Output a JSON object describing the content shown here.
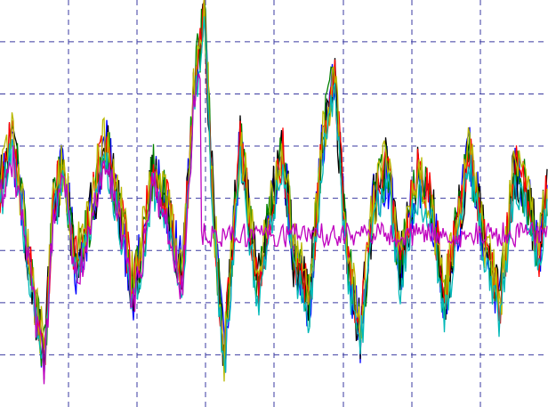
{
  "chart_data": {
    "type": "line",
    "title": "",
    "xlabel": "",
    "ylabel": "",
    "grid": true,
    "legend": "none",
    "xlim": [
      0,
      616
    ],
    "ylim": [
      -1.6,
      2.3
    ],
    "x_gridlines": [
      77,
      154,
      231,
      308,
      386,
      463,
      540
    ],
    "y_gridlines": [
      1.9,
      1.4,
      0.9,
      0.4,
      -0.1,
      -0.6,
      -1.1
    ],
    "envelope": {
      "x": [
        0,
        12,
        25,
        38,
        50,
        60,
        72,
        85,
        100,
        118,
        135,
        150,
        160,
        172,
        190,
        205,
        218,
        230,
        240,
        252,
        270,
        290,
        305,
        318,
        330,
        348,
        362,
        376,
        390,
        405,
        420,
        435,
        450,
        468,
        485,
        500,
        512,
        528,
        545,
        562,
        578,
        592,
        606,
        616
      ],
      "y": [
        0.4,
        0.95,
        0.3,
        -0.6,
        -1.2,
        0.3,
        0.65,
        -0.3,
        0.1,
        0.9,
        0.2,
        -0.55,
        -0.1,
        0.6,
        0.2,
        -0.4,
        1.4,
        2.1,
        0.2,
        -1.2,
        0.9,
        -0.55,
        0.3,
        0.8,
        -0.2,
        -0.65,
        0.85,
        1.5,
        -0.2,
        -0.95,
        0.3,
        0.65,
        -0.35,
        0.55,
        0.3,
        -0.65,
        0.0,
        0.8,
        -0.1,
        -0.7,
        0.6,
        0.4,
        -0.2,
        0.5
      ],
      "spread": 0.35
    },
    "series": [
      {
        "color": "#0000ff",
        "noise": 0.3
      },
      {
        "color": "#000000",
        "noise": 0.32
      },
      {
        "color": "#008000",
        "noise": 0.28
      },
      {
        "color": "#ff0000",
        "noise": 0.26
      },
      {
        "color": "#b8b800",
        "noise": 0.3
      },
      {
        "color": "#00b8b8",
        "noise": 0.2
      },
      {
        "color": "#bf00bf",
        "noise": 0.2,
        "flat_after": 225,
        "flat_level": 0.05,
        "flat_noise": 0.12
      }
    ]
  }
}
